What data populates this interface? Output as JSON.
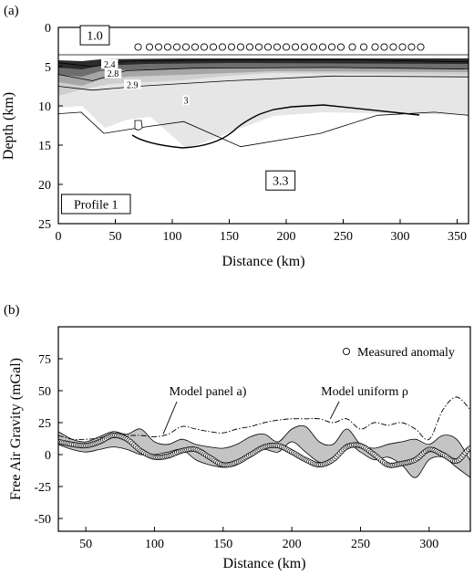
{
  "panels": {
    "a": {
      "label": "(a)"
    },
    "b": {
      "label": "(b)"
    }
  },
  "chart_data": [
    {
      "type": "heatmap",
      "panel": "a",
      "xlabel": "Distance (km)",
      "ylabel": "Depth (km)",
      "xlim": [
        0,
        360
      ],
      "ylim": [
        25,
        0
      ],
      "y_inverted": true,
      "xticks": [
        0,
        50,
        100,
        150,
        200,
        250,
        300,
        350
      ],
      "yticks": [
        0,
        5,
        10,
        15,
        20,
        25
      ],
      "annotations": [
        {
          "text": "1.0",
          "x": 32,
          "y": 1.0,
          "boxed": true
        },
        {
          "text": "3.3",
          "x": 195,
          "y": 19.5,
          "boxed": true
        },
        {
          "text": "Profile 1",
          "x": 33,
          "y": 22.5,
          "boxed": true
        },
        {
          "text": "2.4",
          "x": 45,
          "y": 4.7,
          "boxed": false
        },
        {
          "text": "2.8",
          "x": 48,
          "y": 5.9,
          "boxed": false
        },
        {
          "text": "2.9",
          "x": 65,
          "y": 7.3,
          "boxed": false
        },
        {
          "text": "3",
          "x": 112,
          "y": 9.3,
          "boxed": false
        }
      ],
      "stations": {
        "depth": 2.5,
        "x": [
          70,
          80,
          88,
          96,
          104,
          112,
          120,
          128,
          136,
          144,
          152,
          160,
          168,
          176,
          184,
          192,
          200,
          208,
          216,
          224,
          232,
          240,
          248,
          258,
          268,
          278,
          286,
          294,
          302,
          310,
          318
        ]
      },
      "seafloor_depth": [
        [
          0,
          3.0
        ],
        [
          20,
          3.5
        ],
        [
          40,
          3.2
        ],
        [
          60,
          3.0
        ],
        [
          80,
          3.1
        ],
        [
          150,
          3.1
        ],
        [
          250,
          3.0
        ],
        [
          300,
          3.0
        ],
        [
          360,
          3.0
        ]
      ],
      "moho_depth": [
        [
          55,
          13.9
        ],
        [
          100,
          14.8
        ],
        [
          150,
          15.5
        ],
        [
          200,
          15.1
        ],
        [
          260,
          13.3
        ],
        [
          320,
          11.0
        ]
      ],
      "contours": [
        [
          [
            0,
            4.5
          ],
          [
            30,
            5.0
          ],
          [
            60,
            4.3
          ],
          [
            120,
            4.2
          ],
          [
            250,
            4.1
          ],
          [
            360,
            4.4
          ]
        ],
        [
          [
            0,
            6.0
          ],
          [
            30,
            6.8
          ],
          [
            60,
            5.5
          ],
          [
            120,
            5.2
          ],
          [
            240,
            5.1
          ],
          [
            360,
            5.3
          ]
        ],
        [
          [
            0,
            7.5
          ],
          [
            30,
            8.0
          ],
          [
            70,
            7.5
          ],
          [
            150,
            6.8
          ],
          [
            240,
            6.2
          ],
          [
            360,
            6.3
          ]
        ],
        [
          [
            0,
            11.0
          ],
          [
            20,
            10.8
          ],
          [
            40,
            13.5
          ],
          [
            70,
            12.8
          ],
          [
            110,
            12.0
          ],
          [
            160,
            15.2
          ],
          [
            230,
            13.5
          ],
          [
            280,
            11.2
          ],
          [
            330,
            10.8
          ],
          [
            360,
            11.2
          ]
        ]
      ],
      "density_colorscale": [
        "#1f1f1f",
        "#555555",
        "#8f8f8f",
        "#bdbdbd",
        "#e6e6e6",
        "#ffffff"
      ]
    },
    {
      "type": "line",
      "panel": "b",
      "xlabel": "Distance (km)",
      "ylabel": "Free Air Gravity (mGal)",
      "xlim": [
        30,
        330
      ],
      "ylim": [
        -60,
        100
      ],
      "xticks": [
        50,
        100,
        150,
        200,
        250,
        300
      ],
      "yticks": [
        -50,
        -25,
        0,
        25,
        50,
        75
      ],
      "legend_position": "top-right",
      "legend": [
        "Measured anomaly"
      ],
      "annotations": [
        {
          "text": "Model panel a)",
          "x": 105,
          "y": 38
        },
        {
          "text": "Model uniform ρ",
          "x": 270,
          "y": 46
        }
      ],
      "series": [
        {
          "name": "Measured anomaly",
          "style": "circles",
          "x": [
            30,
            40,
            50,
            60,
            70,
            80,
            90,
            100,
            110,
            120,
            130,
            140,
            150,
            160,
            170,
            180,
            190,
            200,
            210,
            220,
            230,
            240,
            250,
            260,
            270,
            280,
            290,
            300,
            310,
            320,
            330
          ],
          "y": [
            10,
            8,
            7,
            10,
            15,
            12,
            3,
            -2,
            -1,
            3,
            4,
            -2,
            -8,
            -6,
            0,
            6,
            7,
            2,
            -4,
            -8,
            -4,
            6,
            7,
            0,
            -8,
            -7,
            -4,
            4,
            0,
            -5,
            5
          ]
        },
        {
          "name": "Model uniform ρ",
          "style": "dash-dot",
          "x": [
            30,
            40,
            50,
            60,
            70,
            80,
            90,
            100,
            110,
            120,
            130,
            140,
            150,
            160,
            170,
            180,
            190,
            200,
            210,
            220,
            230,
            240,
            250,
            260,
            270,
            280,
            290,
            300,
            310,
            320,
            330
          ],
          "y": [
            15,
            12,
            12,
            13,
            16,
            15,
            15,
            14,
            16,
            22,
            20,
            18,
            17,
            20,
            22,
            25,
            27,
            28,
            28,
            28,
            25,
            28,
            20,
            25,
            23,
            25,
            20,
            12,
            35,
            45,
            35
          ]
        },
        {
          "name": "Model panel a)",
          "style": "band",
          "x": [
            30,
            40,
            50,
            60,
            70,
            80,
            90,
            100,
            110,
            120,
            130,
            140,
            150,
            160,
            170,
            180,
            190,
            200,
            210,
            220,
            230,
            240,
            250,
            260,
            270,
            280,
            290,
            300,
            310,
            320,
            330
          ],
          "upper": [
            18,
            12,
            10,
            14,
            18,
            16,
            20,
            10,
            8,
            12,
            8,
            6,
            5,
            8,
            14,
            16,
            10,
            20,
            22,
            10,
            8,
            20,
            8,
            5,
            8,
            10,
            12,
            8,
            15,
            12,
            -5
          ],
          "lower": [
            8,
            4,
            2,
            4,
            6,
            4,
            0,
            0,
            2,
            4,
            -4,
            -8,
            -10,
            -8,
            0,
            4,
            2,
            10,
            2,
            -6,
            -6,
            8,
            2,
            -4,
            -2,
            -8,
            -18,
            -4,
            -2,
            -10,
            -18
          ]
        }
      ]
    }
  ]
}
